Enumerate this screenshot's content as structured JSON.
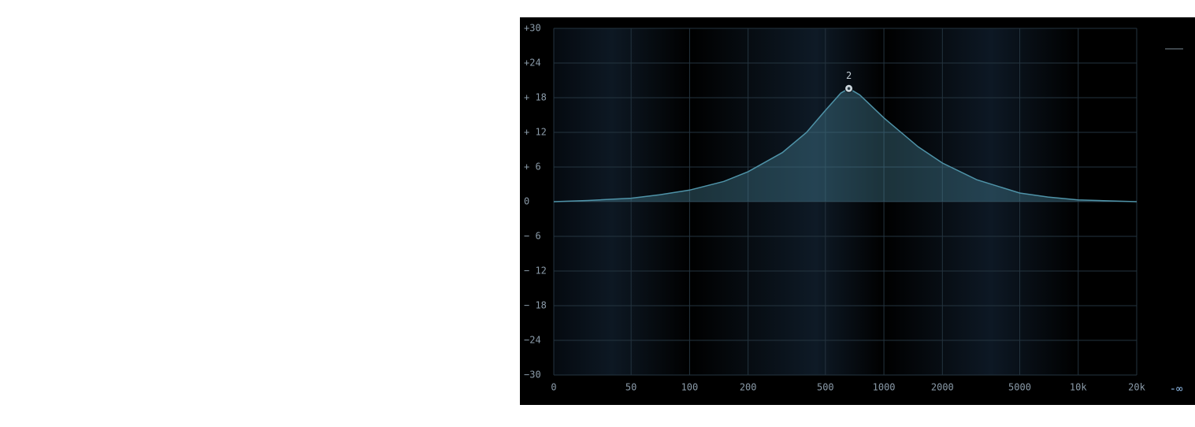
{
  "chart_data": {
    "type": "area",
    "x": [
      20,
      30,
      50,
      70,
      100,
      150,
      200,
      300,
      400,
      500,
      600,
      660,
      750,
      1000,
      1500,
      2000,
      3000,
      5000,
      7000,
      10000,
      20000
    ],
    "values": [
      0,
      0.2,
      0.6,
      1.2,
      2,
      3.5,
      5.2,
      8.5,
      12,
      15.8,
      18.8,
      19.6,
      18.5,
      14.5,
      9.5,
      6.7,
      3.8,
      1.5,
      0.8,
      0.3,
      0
    ],
    "color": "#4f93a8",
    "xlog": true,
    "xlim": [
      20,
      20000
    ],
    "xticks": [
      {
        "value": 20,
        "label": "0"
      },
      50,
      100,
      200,
      500,
      1000,
      2000,
      5000,
      {
        "value": 10000,
        "label": "10k"
      },
      {
        "value": 20000,
        "label": "20k"
      }
    ],
    "ylim": [
      -30,
      30
    ],
    "yticks": [
      {
        "value": 30,
        "label": "+30"
      },
      {
        "value": 24,
        "label": "+24"
      },
      {
        "value": 18,
        "label": "+ 18"
      },
      {
        "value": 12,
        "label": "+ 12"
      },
      {
        "value": 6,
        "label": "+ 6"
      },
      0,
      {
        "value": -6,
        "label": "− 6"
      },
      {
        "value": -12,
        "label": "− 12"
      },
      {
        "value": -18,
        "label": "− 18"
      },
      {
        "value": -24,
        "label": "−24"
      },
      {
        "value": -30,
        "label": "−30"
      }
    ],
    "grid": true,
    "band_node": {
      "label": "2",
      "x": 660,
      "y": 19.6
    },
    "meter_label": "-∞"
  }
}
